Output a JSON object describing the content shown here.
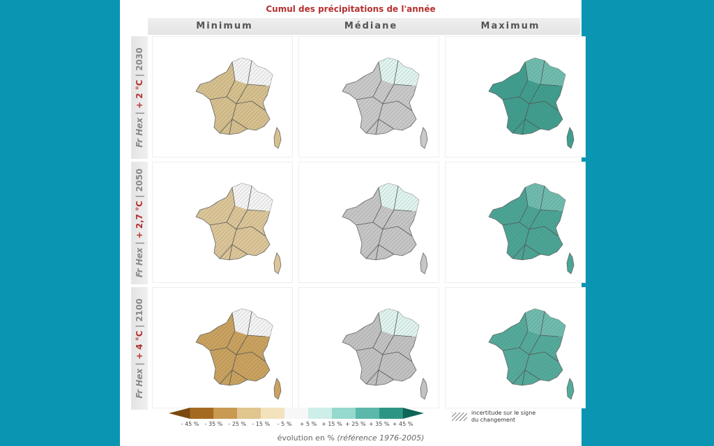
{
  "title": "Cumul des précipitations de l'année",
  "columns": [
    "Minimum",
    "Médiane",
    "Maximum"
  ],
  "rows": [
    {
      "prefix": "Fr Hex |",
      "temp": "+ 2 °C",
      "year": "| 2030"
    },
    {
      "prefix": "Fr Hex |",
      "temp": "+ 2,7 °C",
      "year": "| 2050"
    },
    {
      "prefix": "Fr Hex |",
      "temp": "+ 4 °C",
      "year": "| 2100"
    }
  ],
  "legend": {
    "ticks": [
      "- 45 %",
      "- 35 %",
      "- 25 %",
      "- 15 %",
      "- 5 %",
      "+ 5 %",
      "+ 15 %",
      "+ 25 %",
      "+ 35 %",
      "+ 45 %"
    ],
    "colors": [
      "#7a4a12",
      "#a56a22",
      "#c99a52",
      "#e0c58e",
      "#f2e3bd",
      "#f7f7f7",
      "#cdeee9",
      "#97d8cd",
      "#5bb8aa",
      "#2e9584",
      "#0d6658"
    ],
    "hatch_label_1": "incertitude sur le signe",
    "hatch_label_2": "du changement",
    "axis_label_main": "évolution en %",
    "axis_label_ref": "(référence 1976-2005)"
  },
  "map_fills": [
    [
      "#d6c08e",
      "#c9c9c9",
      "#3f9e8e"
    ],
    [
      "#dcc698",
      "#c6c6c6",
      "#4aa595"
    ],
    [
      "#caa25e",
      "#c2c2c2",
      "#53ab9b"
    ]
  ]
}
